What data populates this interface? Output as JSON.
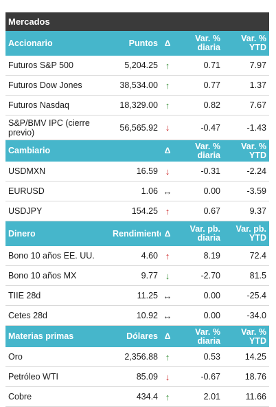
{
  "title": "Mercados",
  "sections": [
    {
      "id": "accionario",
      "headers": [
        "Accionario",
        "Puntos",
        "Δ",
        "Var. % diaria",
        "Var. % YTD"
      ],
      "rows": [
        {
          "name": "Futuros S&P 500",
          "value": "5,204.25",
          "dir": "up",
          "daily": "0.71",
          "ytd": "7.97"
        },
        {
          "name": "Futuros Dow Jones",
          "value": "38,534.00",
          "dir": "up",
          "daily": "0.77",
          "ytd": "1.37"
        },
        {
          "name": "Futuros Nasdaq",
          "value": "18,329.00",
          "dir": "up",
          "daily": "0.82",
          "ytd": "7.67"
        },
        {
          "name": "S&P/BMV IPC (cierre previo)",
          "value": "56,565.92",
          "dir": "down",
          "daily": "-0.47",
          "ytd": "-1.43"
        }
      ]
    },
    {
      "id": "cambiario",
      "headers": [
        "Cambiario",
        "",
        "Δ",
        "Var. % diaria",
        "Var. % YTD"
      ],
      "rows": [
        {
          "name": "USDMXN",
          "value": "16.59",
          "dir": "down",
          "daily": "-0.31",
          "ytd": "-2.24"
        },
        {
          "name": "EURUSD",
          "value": "1.06",
          "dir": "flat",
          "daily": "0.00",
          "ytd": "-3.59"
        },
        {
          "name": "USDJPY",
          "value": "154.25",
          "dir": "up-red",
          "daily": "0.67",
          "ytd": "9.37"
        }
      ]
    },
    {
      "id": "dinero",
      "headers": [
        "Dinero",
        "Rendimiento",
        "Δ",
        "Var. pb. diaria",
        "Var. pb. YTD"
      ],
      "rows": [
        {
          "name": "Bono 10 años EE. UU.",
          "value": "4.60",
          "dir": "up-red",
          "daily": "8.19",
          "ytd": "72.4"
        },
        {
          "name": "Bono 10 años MX",
          "value": "9.77",
          "dir": "down-green",
          "daily": "-2.70",
          "ytd": "81.5"
        },
        {
          "name": "TIIE 28d",
          "value": "11.25",
          "dir": "flat",
          "daily": "0.00",
          "ytd": "-25.4"
        },
        {
          "name": "Cetes 28d",
          "value": "10.92",
          "dir": "flat",
          "daily": "0.00",
          "ytd": "-34.0"
        }
      ]
    },
    {
      "id": "materias-primas",
      "headers": [
        "Materias primas",
        "Dólares",
        "Δ",
        "Var. % diaria",
        "Var. % YTD"
      ],
      "rows": [
        {
          "name": "Oro",
          "value": "2,356.88",
          "dir": "up",
          "daily": "0.53",
          "ytd": "14.25"
        },
        {
          "name": "Petróleo WTI",
          "value": "85.09",
          "dir": "down",
          "daily": "-0.67",
          "ytd": "18.76"
        },
        {
          "name": "Cobre",
          "value": "434.4",
          "dir": "up",
          "daily": "2.01",
          "ytd": "11.66"
        }
      ]
    }
  ],
  "icons": {
    "up": {
      "glyph": "↑",
      "color": "#2e8b2e"
    },
    "down": {
      "glyph": "↓",
      "color": "#cc2222"
    },
    "up-red": {
      "glyph": "↑",
      "color": "#cc2222"
    },
    "down-green": {
      "glyph": "↓",
      "color": "#2e8b2e"
    },
    "flat": {
      "glyph": "↔",
      "color": "#333333"
    }
  },
  "colors": {
    "title_bg": "#3a3a3a",
    "header_bg": "#46b6cb",
    "up": "#2e8b2e",
    "down": "#cc2222"
  }
}
